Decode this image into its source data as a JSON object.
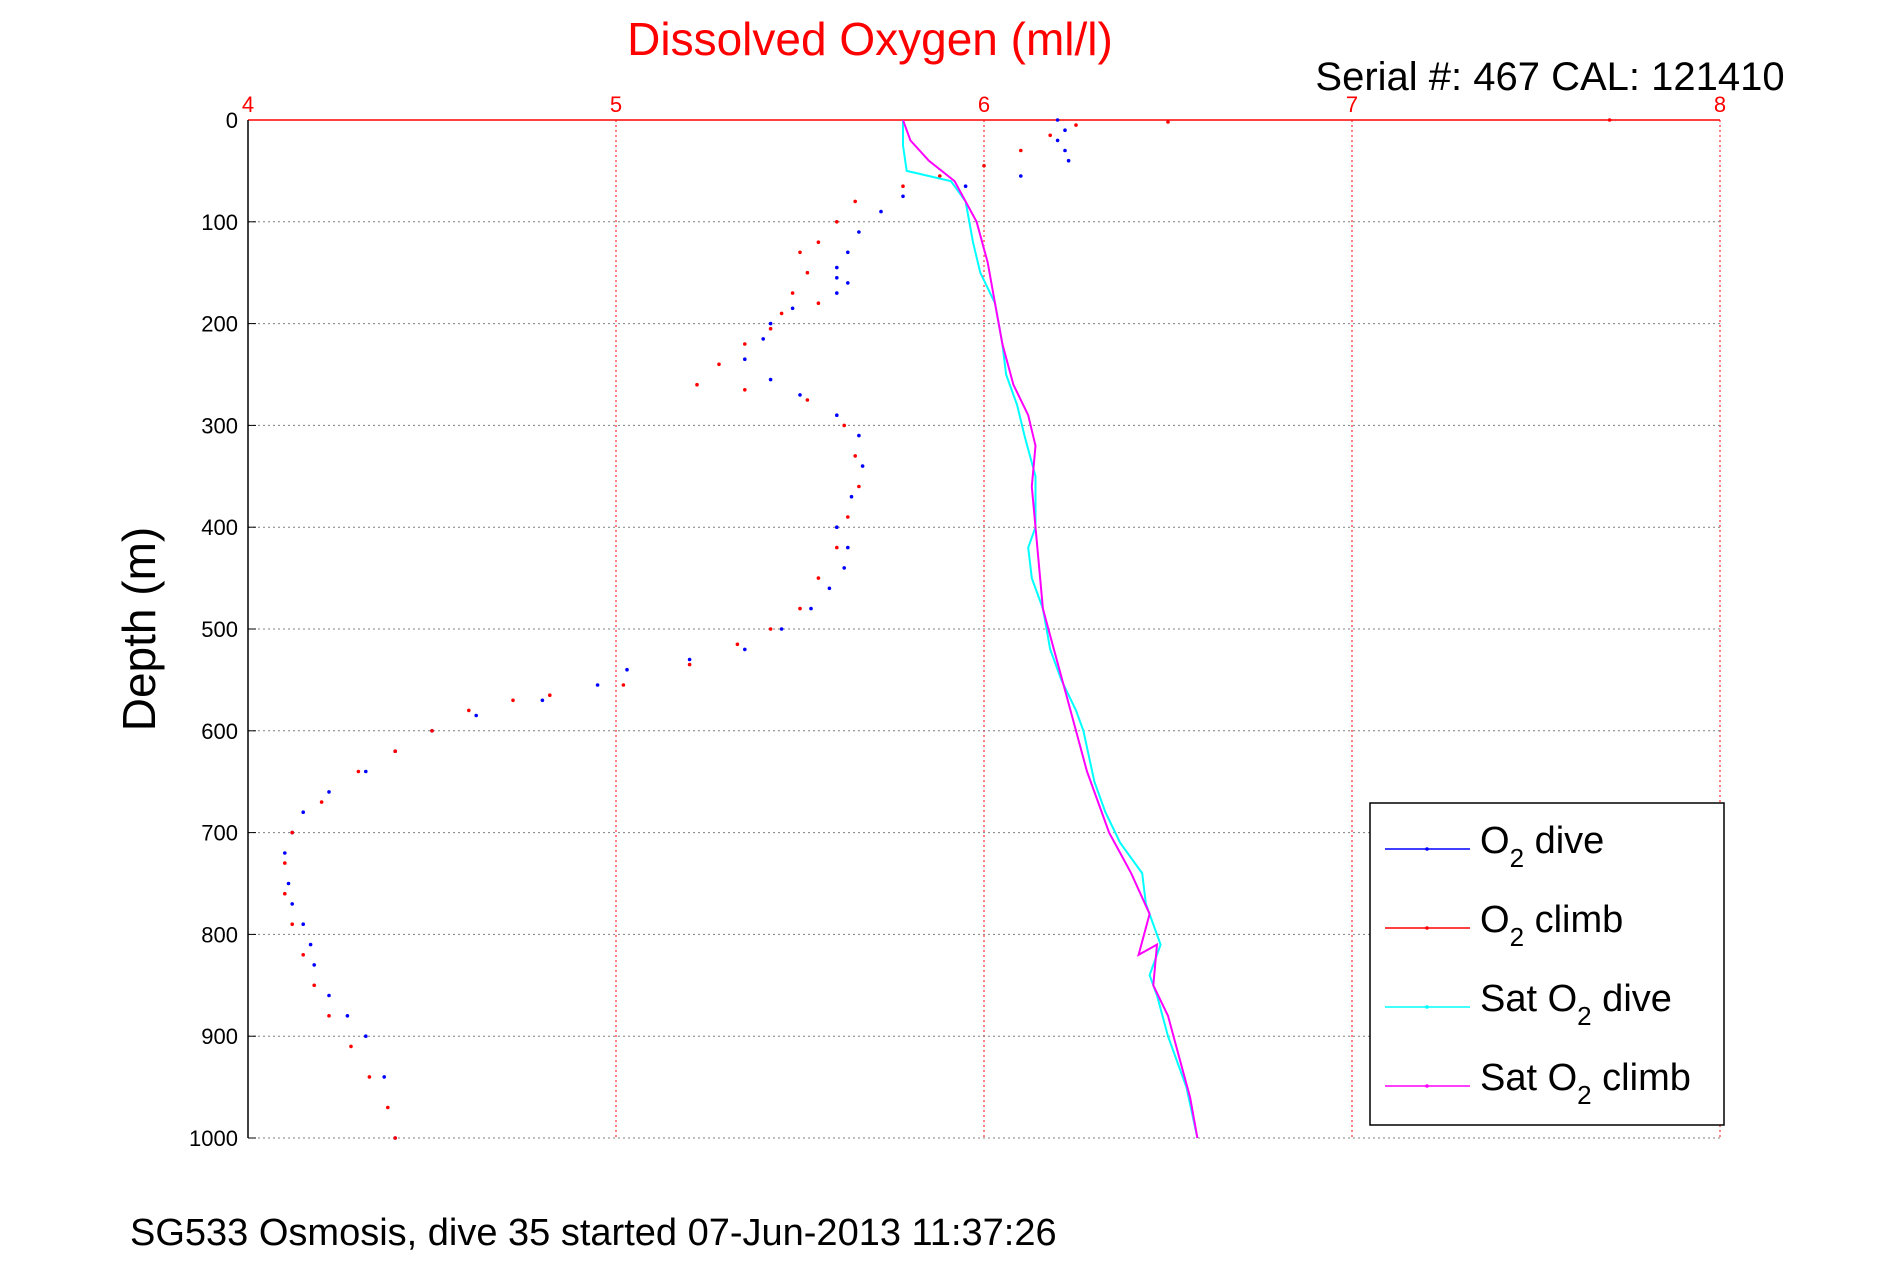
{
  "page": {
    "footer": "SG533 Osmosis, dive 35 started 07-Jun-2013 11:37:26"
  },
  "chart_data": {
    "type": "line",
    "title": "Dissolved Oxygen (ml/l)",
    "subtitle": "Serial #: 467  CAL: 121410",
    "xlabel": "",
    "ylabel": "Depth (m)",
    "xlim": [
      4,
      8
    ],
    "ylim": [
      0,
      1000
    ],
    "y_reversed": true,
    "x_axis_position": "top",
    "grid": true,
    "xticks": [
      "4",
      "5",
      "6",
      "7",
      "8"
    ],
    "yticks": [
      "0",
      "100",
      "200",
      "300",
      "400",
      "500",
      "600",
      "700",
      "800",
      "900",
      "1000"
    ],
    "legend_position": "lower-right",
    "series": [
      {
        "name": "O2 dive",
        "label_main": "O",
        "label_sub": "2",
        "label_rest": " dive",
        "color": "#0000ff",
        "style": "dots",
        "x": [
          6.2,
          6.22,
          6.2,
          6.22,
          6.23,
          6.1,
          5.95,
          5.78,
          5.72,
          5.66,
          5.63,
          5.6,
          5.6,
          5.63,
          5.6,
          5.48,
          5.42,
          5.4,
          5.35,
          5.42,
          5.5,
          5.6,
          5.66,
          5.67,
          5.64,
          5.6,
          5.63,
          5.62,
          5.58,
          5.53,
          5.45,
          5.35,
          5.2,
          5.03,
          4.95,
          4.8,
          4.62,
          4.5,
          4.4,
          4.32,
          4.22,
          4.15,
          4.12,
          4.1,
          4.11,
          4.12,
          4.15,
          4.17,
          4.18,
          4.22,
          4.27,
          4.32,
          4.37,
          4.4
        ],
        "y": [
          0,
          10,
          20,
          30,
          40,
          55,
          65,
          75,
          90,
          110,
          130,
          145,
          155,
          160,
          170,
          185,
          200,
          215,
          235,
          255,
          270,
          290,
          310,
          340,
          370,
          400,
          420,
          440,
          460,
          480,
          500,
          520,
          530,
          540,
          555,
          570,
          585,
          600,
          620,
          640,
          660,
          680,
          700,
          720,
          750,
          770,
          790,
          810,
          830,
          860,
          880,
          900,
          940,
          1000
        ]
      },
      {
        "name": "O2 climb",
        "label_main": "O",
        "label_sub": "2",
        "label_rest": " climb",
        "color": "#ff0000",
        "style": "dots",
        "x": [
          7.7,
          6.5,
          6.25,
          6.18,
          6.1,
          6.0,
          5.88,
          5.78,
          5.65,
          5.6,
          5.55,
          5.5,
          5.52,
          5.48,
          5.55,
          5.45,
          5.42,
          5.35,
          5.28,
          5.22,
          5.35,
          5.52,
          5.62,
          5.65,
          5.66,
          5.63,
          5.6,
          5.55,
          5.5,
          5.42,
          5.33,
          5.2,
          5.02,
          4.82,
          4.72,
          4.6,
          4.5,
          4.4,
          4.3,
          4.2,
          4.12,
          4.1,
          4.1,
          4.12,
          4.15,
          4.18,
          4.22,
          4.28,
          4.33,
          4.38,
          4.4
        ],
        "y": [
          0,
          2,
          5,
          15,
          30,
          45,
          55,
          65,
          80,
          100,
          120,
          130,
          150,
          170,
          180,
          190,
          205,
          220,
          240,
          260,
          265,
          275,
          300,
          330,
          360,
          390,
          420,
          450,
          480,
          500,
          515,
          535,
          555,
          565,
          570,
          580,
          600,
          620,
          640,
          670,
          700,
          730,
          760,
          790,
          820,
          850,
          880,
          910,
          940,
          970,
          1000
        ]
      },
      {
        "name": "Sat O2 dive",
        "label_main": "Sat O",
        "label_sub": "2",
        "label_rest": " dive",
        "color": "#00ffff",
        "style": "line",
        "x": [
          5.78,
          5.78,
          5.79,
          5.85,
          5.91,
          5.95,
          5.97,
          5.99,
          6.03,
          6.05,
          6.06,
          6.09,
          6.11,
          6.14,
          6.14,
          6.12,
          6.13,
          6.16,
          6.18,
          6.21,
          6.25,
          6.27,
          6.3,
          6.33,
          6.37,
          6.43,
          6.44,
          6.48,
          6.45,
          6.47,
          6.5,
          6.55,
          6.58
        ],
        "y": [
          0,
          25,
          50,
          55,
          60,
          80,
          120,
          150,
          180,
          220,
          250,
          280,
          310,
          350,
          400,
          420,
          450,
          480,
          520,
          550,
          580,
          600,
          650,
          680,
          710,
          740,
          770,
          810,
          840,
          860,
          900,
          950,
          1000
        ]
      },
      {
        "name": "Sat O2 climb",
        "label_main": "Sat O",
        "label_sub": "2",
        "label_rest": " climb",
        "color": "#ff00ff",
        "style": "line",
        "x": [
          5.78,
          5.8,
          5.85,
          5.92,
          5.98,
          6.01,
          6.03,
          6.05,
          6.08,
          6.12,
          6.14,
          6.13,
          6.14,
          6.15,
          6.16,
          6.19,
          6.22,
          6.25,
          6.28,
          6.31,
          6.34,
          6.37,
          6.4,
          6.45,
          6.42,
          6.47,
          6.46,
          6.5,
          6.53,
          6.56,
          6.58
        ],
        "y": [
          0,
          20,
          40,
          60,
          100,
          140,
          180,
          220,
          260,
          290,
          320,
          360,
          400,
          440,
          480,
          520,
          560,
          600,
          640,
          670,
          700,
          720,
          740,
          780,
          820,
          810,
          850,
          880,
          920,
          960,
          1000
        ]
      }
    ]
  }
}
